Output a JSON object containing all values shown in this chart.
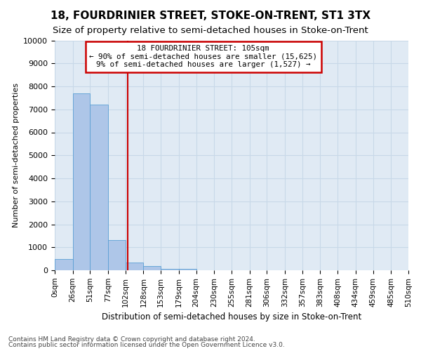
{
  "title": "18, FOURDRINIER STREET, STOKE-ON-TRENT, ST1 3TX",
  "subtitle": "Size of property relative to semi-detached houses in Stoke-on-Trent",
  "xlabel": "Distribution of semi-detached houses by size in Stoke-on-Trent",
  "ylabel": "Number of semi-detached properties",
  "footer1": "Contains HM Land Registry data © Crown copyright and database right 2024.",
  "footer2": "Contains public sector information licensed under the Open Government Licence v3.0.",
  "bin_edges": [
    0,
    26,
    51,
    77,
    102,
    128,
    153,
    179,
    204,
    230,
    255,
    281,
    306,
    332,
    357,
    383,
    408,
    434,
    459,
    485,
    510
  ],
  "bin_labels": [
    "0sqm",
    "26sqm",
    "51sqm",
    "77sqm",
    "102sqm",
    "128sqm",
    "153sqm",
    "179sqm",
    "204sqm",
    "230sqm",
    "255sqm",
    "281sqm",
    "306sqm",
    "332sqm",
    "357sqm",
    "383sqm",
    "408sqm",
    "434sqm",
    "459sqm",
    "485sqm",
    "510sqm"
  ],
  "bar_values": [
    500,
    7700,
    7200,
    1300,
    350,
    175,
    75,
    50,
    0,
    0,
    0,
    0,
    0,
    0,
    0,
    0,
    0,
    0,
    0,
    0
  ],
  "bar_color": "#aec6e8",
  "bar_edge_color": "#5a9fd4",
  "grid_color": "#c8d8e8",
  "vline_color": "#cc0000",
  "vline_bin": 3.5,
  "annotation_title": "18 FOURDRINIER STREET: 105sqm",
  "annotation_line1": "← 90% of semi-detached houses are smaller (15,625)",
  "annotation_line2": "9% of semi-detached houses are larger (1,527) →",
  "annotation_box_color": "#cc0000",
  "ylim": [
    0,
    10000
  ],
  "yticks": [
    0,
    1000,
    2000,
    3000,
    4000,
    5000,
    6000,
    7000,
    8000,
    9000,
    10000
  ],
  "background_color": "#e0eaf4",
  "title_fontsize": 11,
  "subtitle_fontsize": 9.5
}
